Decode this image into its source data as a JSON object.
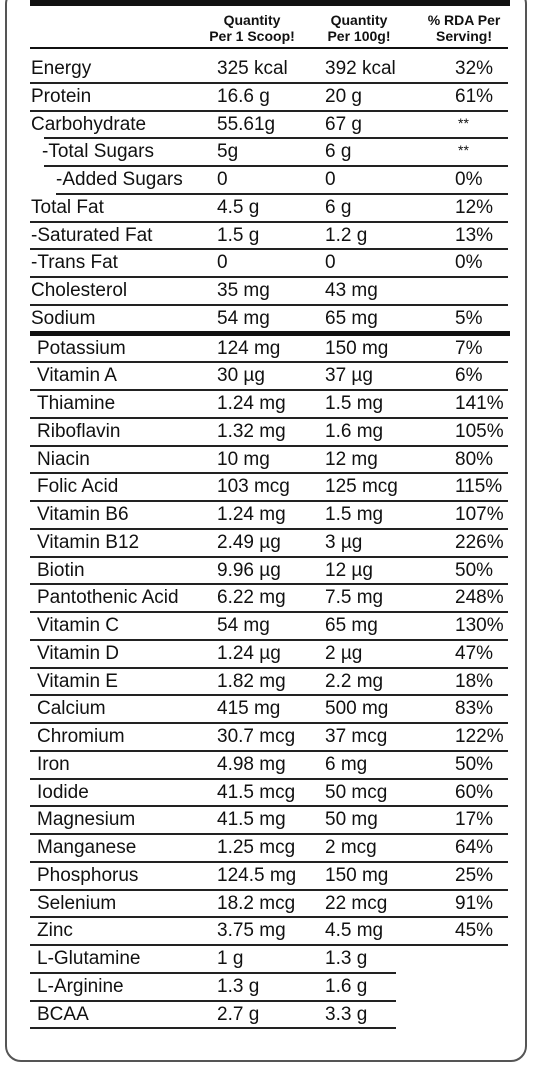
{
  "headers": {
    "qty_scoop": [
      "Quantity",
      "Per 1 Scoop!"
    ],
    "qty_100g": [
      "Quantity",
      "Per 100g!"
    ],
    "rda": [
      "% RDA Per",
      "Serving!"
    ]
  },
  "rows": [
    {
      "name": "Energy",
      "scoop": "325 kcal",
      "per100": "392 kcal",
      "rda": "32%"
    },
    {
      "name": "Protein",
      "scoop": "16.6 g",
      "per100": "20 g",
      "rda": "61%"
    },
    {
      "name": "Carbohydrate",
      "scoop": "55.61g",
      "per100": "67 g",
      "rda": "**"
    },
    {
      "name": "-Total Sugars",
      "scoop": "5g",
      "per100": "6 g",
      "rda": "**"
    },
    {
      "name": "-Added Sugars",
      "scoop": "0",
      "per100": "0",
      "rda": "0%"
    },
    {
      "name": "Total Fat",
      "scoop": "4.5 g",
      "per100": "6 g",
      "rda": "12%"
    },
    {
      "name": "-Saturated Fat",
      "scoop": "1.5 g",
      "per100": "1.2 g",
      "rda": "13%"
    },
    {
      "name": "-Trans Fat",
      "scoop": "0",
      "per100": "0",
      "rda": "0%"
    },
    {
      "name": "Cholesterol",
      "scoop": "35 mg",
      "per100": "43 mg",
      "rda": ""
    },
    {
      "name": "Sodium",
      "scoop": "54 mg",
      "per100": "65 mg",
      "rda": "5%"
    },
    {
      "name": "Potassium",
      "scoop": "124 mg",
      "per100": "150 mg",
      "rda": "7%"
    },
    {
      "name": "Vitamin A",
      "scoop": "30 µg",
      "per100": "37 µg",
      "rda": "6%"
    },
    {
      "name": "Thiamine",
      "scoop": "1.24 mg",
      "per100": "1.5 mg",
      "rda": "141%"
    },
    {
      "name": "Riboflavin",
      "scoop": "1.32 mg",
      "per100": "1.6 mg",
      "rda": "105%"
    },
    {
      "name": "Niacin",
      "scoop": "10 mg",
      "per100": "12 mg",
      "rda": "80%"
    },
    {
      "name": "Folic Acid",
      "scoop": "103 mcg",
      "per100": "125 mcg",
      "rda": "115%"
    },
    {
      "name": "Vitamin B6",
      "scoop": "1.24 mg",
      "per100": "1.5 mg",
      "rda": "107%"
    },
    {
      "name": "Vitamin B12",
      "scoop": "2.49 µg",
      "per100": "3 µg",
      "rda": "226%"
    },
    {
      "name": "Biotin",
      "scoop": "9.96 µg",
      "per100": "12 µg",
      "rda": "50%"
    },
    {
      "name": "Pantothenic Acid",
      "scoop": "6.22 mg",
      "per100": "7.5 mg",
      "rda": "248%"
    },
    {
      "name": "Vitamin C",
      "scoop": "54 mg",
      "per100": "65 mg",
      "rda": "130%"
    },
    {
      "name": "Vitamin D",
      "scoop": "1.24 µg",
      "per100": "2 µg",
      "rda": "47%"
    },
    {
      "name": "Vitamin E",
      "scoop": "1.82 mg",
      "per100": "2.2 mg",
      "rda": "18%"
    },
    {
      "name": "Calcium",
      "scoop": "415 mg",
      "per100": "500 mg",
      "rda": "83%"
    },
    {
      "name": "Chromium",
      "scoop": "30.7 mcg",
      "per100": "37 mcg",
      "rda": "122%"
    },
    {
      "name": "Iron",
      "scoop": "4.98 mg",
      "per100": "6 mg",
      "rda": "50%"
    },
    {
      "name": "Iodide",
      "scoop": "41.5 mcg",
      "per100": "50 mcg",
      "rda": "60%"
    },
    {
      "name": "Magnesium",
      "scoop": "41.5 mg",
      "per100": "50 mg",
      "rda": "17%"
    },
    {
      "name": "Manganese",
      "scoop": "1.25 mcg",
      "per100": "2 mcg",
      "rda": "64%"
    },
    {
      "name": "Phosphorus",
      "scoop": "124.5 mg",
      "per100": "150 mg",
      "rda": "25%"
    },
    {
      "name": "Selenium",
      "scoop": "18.2 mcg",
      "per100": "22 mcg",
      "rda": "91%"
    },
    {
      "name": "Zinc",
      "scoop": "3.75 mg",
      "per100": "4.5 mg",
      "rda": "45%"
    },
    {
      "name": "L-Glutamine",
      "scoop": "1 g",
      "per100": "1.3 g",
      "rda": ""
    },
    {
      "name": "L-Arginine",
      "scoop": "1.3 g",
      "per100": "1.6 g",
      "rda": ""
    },
    {
      "name": "BCAA",
      "scoop": "2.7 g",
      "per100": "3.3 g",
      "rda": ""
    }
  ]
}
